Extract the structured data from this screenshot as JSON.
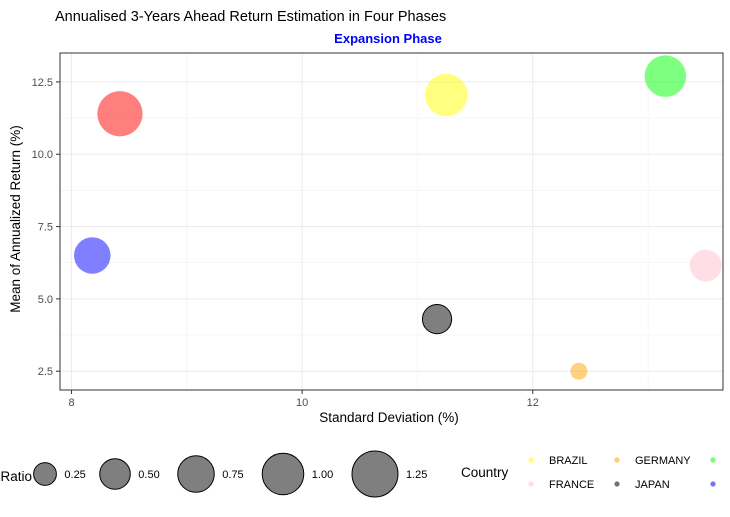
{
  "chart_data": {
    "type": "scatter",
    "title": "Annualised 3-Years Ahead Return Estimation in Four Phases",
    "subtitle": "Expansion Phase",
    "subtitle_color": "#0000ff",
    "xlabel": "Standard Deviation (%)",
    "ylabel": "Mean of Annualized Return (%)",
    "xlim": [
      7.9,
      13.65
    ],
    "ylim": [
      1.85,
      13.5
    ],
    "xticks": [
      8,
      10,
      12
    ],
    "xtick_labels": [
      "8",
      "10",
      "12"
    ],
    "yticks": [
      2.5,
      5.0,
      7.5,
      10.0,
      12.5
    ],
    "ytick_labels": [
      "2.5",
      "5.0",
      "7.5",
      "10.0",
      "12.5"
    ],
    "grid": true,
    "size_legend": {
      "title": "Ratio",
      "values": [
        0.25,
        0.5,
        0.75,
        1.0,
        1.25
      ],
      "labels": [
        "0.25",
        "0.50",
        "0.75",
        "1.00",
        "1.25"
      ]
    },
    "color_legend": {
      "title": "Country",
      "placement": "bottom",
      "entries": [
        {
          "name": "BRAZIL",
          "color": "#ffff00"
        },
        {
          "name": "GERMANY",
          "color": "#ffa500"
        },
        {
          "name": "",
          "color": "#00ff00"
        },
        {
          "name": "FRANCE",
          "color": "#ffc0cb"
        },
        {
          "name": "JAPAN",
          "color": "#000000"
        },
        {
          "name": "",
          "color": "#0000ff"
        }
      ]
    },
    "points": [
      {
        "x": 8.42,
        "y": 11.4,
        "ratio": 1.2,
        "color": "#ff0000",
        "outline": false
      },
      {
        "x": 11.25,
        "y": 12.05,
        "ratio": 1.05,
        "color": "#ffff00",
        "outline": false
      },
      {
        "x": 13.15,
        "y": 12.7,
        "ratio": 1.0,
        "color": "#00ff00",
        "outline": false
      },
      {
        "x": 8.18,
        "y": 6.5,
        "ratio": 0.75,
        "color": "#0000ff",
        "outline": false
      },
      {
        "x": 13.5,
        "y": 6.15,
        "ratio": 0.55,
        "color": "#ffc0cb",
        "outline": false
      },
      {
        "x": 11.17,
        "y": 4.3,
        "ratio": 0.45,
        "color": "#000000",
        "outline": true
      },
      {
        "x": 12.4,
        "y": 2.5,
        "ratio": 0.12,
        "color": "#ffa500",
        "outline": false
      }
    ]
  }
}
